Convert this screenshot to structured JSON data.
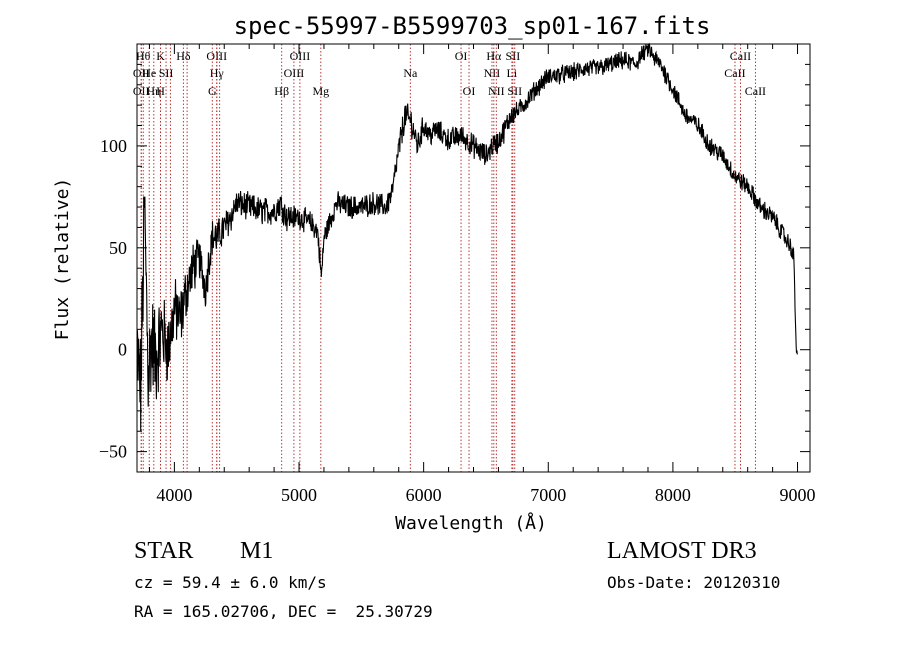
{
  "chart_data": {
    "type": "line",
    "title": "spec-55997-B5599703_sp01-167.fits",
    "xlabel": "Wavelength (Å)",
    "ylabel": "Flux (relative)",
    "xlim": [
      3700,
      9100
    ],
    "ylim": [
      -60,
      150
    ],
    "xticks": [
      4000,
      5000,
      6000,
      7000,
      8000,
      9000
    ],
    "yticks": [
      -50,
      0,
      50,
      100
    ],
    "spectrum_anchors": {
      "x": [
        3700,
        3730,
        3760,
        3790,
        3820,
        3850,
        3900,
        3950,
        4000,
        4050,
        4100,
        4150,
        4200,
        4250,
        4300,
        4350,
        4400,
        4450,
        4500,
        4600,
        4700,
        4800,
        4850,
        4900,
        5000,
        5100,
        5150,
        5180,
        5200,
        5300,
        5400,
        5500,
        5600,
        5700,
        5750,
        5800,
        5850,
        5900,
        5950,
        6000,
        6050,
        6100,
        6200,
        6300,
        6400,
        6500,
        6550,
        6600,
        6650,
        6700,
        6750,
        6800,
        6900,
        7000,
        7100,
        7200,
        7300,
        7400,
        7500,
        7600,
        7700,
        7750,
        7800,
        7850,
        7900,
        8000,
        8100,
        8200,
        8300,
        8400,
        8500,
        8600,
        8700,
        8800,
        8900,
        8950,
        8970,
        8990,
        9000
      ],
      "flux": [
        0,
        -20,
        70,
        -10,
        5,
        -5,
        10,
        0,
        20,
        15,
        30,
        40,
        45,
        30,
        55,
        55,
        60,
        65,
        72,
        70,
        68,
        68,
        72,
        65,
        65,
        62,
        58,
        35,
        55,
        72,
        70,
        70,
        72,
        70,
        78,
        98,
        115,
        112,
        100,
        110,
        105,
        108,
        103,
        105,
        100,
        95,
        100,
        102,
        108,
        115,
        117,
        120,
        128,
        134,
        135,
        136,
        138,
        138,
        140,
        142,
        140,
        145,
        148,
        143,
        140,
        128,
        115,
        110,
        100,
        95,
        85,
        80,
        70,
        65,
        55,
        50,
        45,
        0,
        -5
      ],
      "noise": [
        20,
        25,
        25,
        25,
        22,
        22,
        18,
        16,
        14,
        13,
        12,
        11,
        9,
        9,
        8,
        8,
        7,
        7,
        6,
        6,
        6,
        6,
        6,
        6,
        5,
        5,
        5,
        5,
        5,
        5,
        5,
        5,
        5,
        5,
        5,
        6,
        6,
        6,
        6,
        5,
        5,
        5,
        5,
        5,
        5,
        5,
        5,
        5,
        5,
        5,
        4,
        4,
        4,
        4,
        4,
        4,
        4,
        4,
        4,
        4,
        4,
        4,
        4,
        4,
        4,
        4,
        4,
        4,
        4,
        4,
        4,
        4,
        4,
        4,
        4,
        4,
        4,
        3,
        3
      ]
    },
    "spectral_lines": [
      {
        "x": 3734,
        "label": "OII",
        "row": 1
      },
      {
        "x": 3734,
        "label": "OII",
        "row": 2
      },
      {
        "x": 3750,
        "label": "Hθ",
        "row": 0
      },
      {
        "x": 3798,
        "label": "He",
        "row": 1
      },
      {
        "x": 3835,
        "label": "Hη",
        "row": 2
      },
      {
        "x": 3889,
        "label": "K",
        "row": 0
      },
      {
        "x": 3889,
        "label": "H",
        "row": 2
      },
      {
        "x": 3933,
        "label": "SII",
        "row": 1
      },
      {
        "x": 3968,
        "label": "",
        "row": -1
      },
      {
        "x": 4072,
        "label": "Hδ",
        "row": 0
      },
      {
        "x": 4102,
        "label": "",
        "row": -1
      },
      {
        "x": 4340,
        "label": "OIII",
        "row": 0
      },
      {
        "x": 4340,
        "label": "Hγ",
        "row": 1
      },
      {
        "x": 4304,
        "label": "G",
        "row": 2
      },
      {
        "x": 4363,
        "label": "",
        "row": -1
      },
      {
        "x": 4861,
        "label": "Hβ",
        "row": 2
      },
      {
        "x": 4959,
        "label": "OIII",
        "row": 1
      },
      {
        "x": 5007,
        "label": "OIII",
        "row": 0
      },
      {
        "x": 5175,
        "label": "Mg",
        "row": 2
      },
      {
        "x": 5893,
        "label": "Na",
        "row": 1
      },
      {
        "x": 6300,
        "label": "OI",
        "row": 0
      },
      {
        "x": 6364,
        "label": "OI",
        "row": 2
      },
      {
        "x": 6548,
        "label": "NII",
        "row": 1
      },
      {
        "x": 6563,
        "label": "Hα",
        "row": 0
      },
      {
        "x": 6583,
        "label": "NII",
        "row": 2
      },
      {
        "x": 6708,
        "label": "Li",
        "row": 1
      },
      {
        "x": 6716,
        "label": "SII",
        "row": 0
      },
      {
        "x": 6731,
        "label": "SII",
        "row": 2
      },
      {
        "x": 8498,
        "label": "CaII",
        "row": 1
      },
      {
        "x": 8542,
        "label": "CaII",
        "row": 0
      },
      {
        "x": 8662,
        "label": "CaII",
        "row": 2
      }
    ]
  },
  "info": {
    "object_class": "STAR",
    "subclass": "M1",
    "survey": "LAMOST DR3",
    "redshift": "cz = 59.4 ± 6.0 km/s",
    "obs_date": "Obs-Date: 20120310",
    "coordinates": "RA = 165.02706, DEC =  25.30729"
  }
}
